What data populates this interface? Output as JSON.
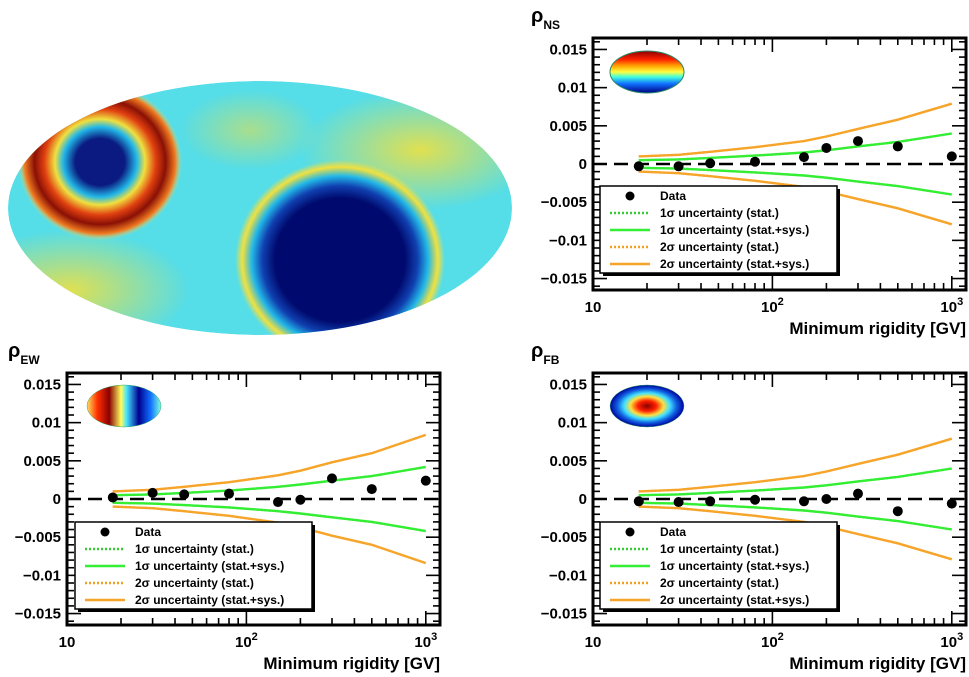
{
  "maps": {
    "main_map": {
      "depicts": "sky-anisotropy-map"
    }
  },
  "chart_data": [
    {
      "id": "ns",
      "type": "scatter",
      "title": "ρ",
      "title_sub": "NS",
      "xlabel": "Minimum rigidity [GV]",
      "xscale": "log",
      "xlim": [
        10,
        1200
      ],
      "ylim": [
        -0.0165,
        0.0165
      ],
      "xticks": [
        {
          "v": 10,
          "base": "10",
          "exp": ""
        },
        {
          "v": 100,
          "base": "10",
          "exp": "2"
        },
        {
          "v": 1000,
          "base": "10",
          "exp": "3"
        }
      ],
      "yticks": [
        {
          "v": 0.015,
          "label": "0.015"
        },
        {
          "v": 0.01,
          "label": "0.01"
        },
        {
          "v": 0.005,
          "label": "0.005"
        },
        {
          "v": 0,
          "label": "0"
        },
        {
          "v": -0.005,
          "label": "−0.005"
        },
        {
          "v": -0.01,
          "label": "−0.01"
        },
        {
          "v": -0.015,
          "label": "−0.015"
        }
      ],
      "inset": "ns",
      "series": [
        {
          "name": "Data",
          "kind": "points",
          "x": [
            18,
            30,
            45,
            80,
            150,
            200,
            300,
            500,
            1000
          ],
          "y": [
            -0.0003,
            -0.0003,
            0.0001,
            0.0003,
            0.0009,
            0.0021,
            0.003,
            0.0023,
            0.001
          ]
        },
        {
          "name": "1σ uncertainty (stat.)",
          "kind": "band",
          "style": "dotted",
          "color": "#33cc33",
          "x": [
            18,
            30,
            45,
            80,
            150,
            200,
            300,
            500,
            1000
          ],
          "y": [
            0.0005,
            0.0006,
            0.0008,
            0.0011,
            0.0015,
            0.0018,
            0.0023,
            0.0029,
            0.004
          ]
        },
        {
          "name": "1σ uncertainty (stat.+sys.)",
          "kind": "band",
          "style": "solid",
          "color": "#33ee33",
          "x": [
            18,
            30,
            45,
            80,
            150,
            200,
            300,
            500,
            1000
          ],
          "y": [
            0.0005,
            0.0006,
            0.0008,
            0.0011,
            0.0015,
            0.0018,
            0.0023,
            0.0029,
            0.004
          ]
        },
        {
          "name": "2σ uncertainty (stat.)",
          "kind": "band",
          "style": "dotted",
          "color": "#f0a020",
          "x": [
            18,
            30,
            45,
            80,
            150,
            200,
            300,
            500,
            1000
          ],
          "y": [
            0.001,
            0.0012,
            0.0016,
            0.0022,
            0.003,
            0.0036,
            0.0046,
            0.0058,
            0.0079
          ]
        },
        {
          "name": "2σ uncertainty (stat.+sys.)",
          "kind": "band",
          "style": "solid",
          "color": "#f7a52a",
          "x": [
            18,
            30,
            45,
            80,
            150,
            200,
            300,
            500,
            1000
          ],
          "y": [
            0.001,
            0.0012,
            0.0016,
            0.0022,
            0.003,
            0.0036,
            0.0046,
            0.0058,
            0.0079
          ]
        }
      ]
    },
    {
      "id": "ew",
      "type": "scatter",
      "title": "ρ",
      "title_sub": "EW",
      "xlabel": "Minimum rigidity [GV]",
      "xscale": "log",
      "xlim": [
        10,
        1200
      ],
      "ylim": [
        -0.0165,
        0.0165
      ],
      "xticks": [
        {
          "v": 10,
          "base": "10",
          "exp": ""
        },
        {
          "v": 100,
          "base": "10",
          "exp": "2"
        },
        {
          "v": 1000,
          "base": "10",
          "exp": "3"
        }
      ],
      "yticks": [
        {
          "v": 0.015,
          "label": "0.015"
        },
        {
          "v": 0.01,
          "label": "0.01"
        },
        {
          "v": 0.005,
          "label": "0.005"
        },
        {
          "v": 0,
          "label": "0"
        },
        {
          "v": -0.005,
          "label": "−0.005"
        },
        {
          "v": -0.01,
          "label": "−0.01"
        },
        {
          "v": -0.015,
          "label": "−0.015"
        }
      ],
      "inset": "ew",
      "series": [
        {
          "name": "Data",
          "kind": "points",
          "x": [
            18,
            30,
            45,
            80,
            150,
            200,
            300,
            500,
            1000
          ],
          "y": [
            0.0002,
            0.0008,
            0.0006,
            0.0007,
            -0.0004,
            -0.0001,
            0.0027,
            0.0013,
            0.0024
          ]
        },
        {
          "name": "1σ uncertainty (stat.)",
          "kind": "band",
          "style": "dotted",
          "color": "#33cc33",
          "x": [
            18,
            30,
            45,
            80,
            150,
            200,
            300,
            500,
            1000
          ],
          "y": [
            0.0005,
            0.0006,
            0.0008,
            0.0011,
            0.0016,
            0.0019,
            0.0024,
            0.003,
            0.0042
          ]
        },
        {
          "name": "1σ uncertainty (stat.+sys.)",
          "kind": "band",
          "style": "solid",
          "color": "#33ee33",
          "x": [
            18,
            30,
            45,
            80,
            150,
            200,
            300,
            500,
            1000
          ],
          "y": [
            0.0005,
            0.0006,
            0.0008,
            0.0011,
            0.0016,
            0.0019,
            0.0024,
            0.003,
            0.0042
          ]
        },
        {
          "name": "2σ uncertainty (stat.)",
          "kind": "band",
          "style": "dotted",
          "color": "#f0a020",
          "x": [
            18,
            30,
            45,
            80,
            150,
            200,
            300,
            500,
            1000
          ],
          "y": [
            0.001,
            0.0012,
            0.0016,
            0.0022,
            0.0031,
            0.0037,
            0.0048,
            0.006,
            0.0084
          ]
        },
        {
          "name": "2σ uncertainty (stat.+sys.)",
          "kind": "band",
          "style": "solid",
          "color": "#f7a52a",
          "x": [
            18,
            30,
            45,
            80,
            150,
            200,
            300,
            500,
            1000
          ],
          "y": [
            0.001,
            0.0012,
            0.0016,
            0.0022,
            0.0031,
            0.0037,
            0.0048,
            0.006,
            0.0084
          ]
        }
      ]
    },
    {
      "id": "fb",
      "type": "scatter",
      "title": "ρ",
      "title_sub": "FB",
      "xlabel": "Minimum rigidity [GV]",
      "xscale": "log",
      "xlim": [
        10,
        1200
      ],
      "ylim": [
        -0.0165,
        0.0165
      ],
      "xticks": [
        {
          "v": 10,
          "base": "10",
          "exp": ""
        },
        {
          "v": 100,
          "base": "10",
          "exp": "2"
        },
        {
          "v": 1000,
          "base": "10",
          "exp": "3"
        }
      ],
      "yticks": [
        {
          "v": 0.015,
          "label": "0.015"
        },
        {
          "v": 0.01,
          "label": "0.01"
        },
        {
          "v": 0.005,
          "label": "0.005"
        },
        {
          "v": 0,
          "label": "0"
        },
        {
          "v": -0.005,
          "label": "−0.005"
        },
        {
          "v": -0.01,
          "label": "−0.01"
        },
        {
          "v": -0.015,
          "label": "−0.015"
        }
      ],
      "inset": "fb",
      "series": [
        {
          "name": "Data",
          "kind": "points",
          "x": [
            18,
            30,
            45,
            80,
            150,
            200,
            300,
            500,
            1000
          ],
          "y": [
            -0.0003,
            -0.0004,
            -0.0003,
            -0.0001,
            -0.0003,
            0.0,
            0.0007,
            -0.0016,
            -0.0006
          ]
        },
        {
          "name": "1σ uncertainty (stat.)",
          "kind": "band",
          "style": "dotted",
          "color": "#33cc33",
          "x": [
            18,
            30,
            45,
            80,
            150,
            200,
            300,
            500,
            1000
          ],
          "y": [
            0.0005,
            0.0006,
            0.0008,
            0.0011,
            0.0015,
            0.0018,
            0.0023,
            0.0029,
            0.004
          ]
        },
        {
          "name": "1σ uncertainty (stat.+sys.)",
          "kind": "band",
          "style": "solid",
          "color": "#33ee33",
          "x": [
            18,
            30,
            45,
            80,
            150,
            200,
            300,
            500,
            1000
          ],
          "y": [
            0.0005,
            0.0006,
            0.0008,
            0.0011,
            0.0015,
            0.0018,
            0.0023,
            0.0029,
            0.004
          ]
        },
        {
          "name": "2σ uncertainty (stat.)",
          "kind": "band",
          "style": "dotted",
          "color": "#f0a020",
          "x": [
            18,
            30,
            45,
            80,
            150,
            200,
            300,
            500,
            1000
          ],
          "y": [
            0.001,
            0.0012,
            0.0016,
            0.0022,
            0.003,
            0.0036,
            0.0046,
            0.0058,
            0.0079
          ]
        },
        {
          "name": "2σ uncertainty (stat.+sys.)",
          "kind": "band",
          "style": "solid",
          "color": "#f7a52a",
          "x": [
            18,
            30,
            45,
            80,
            150,
            200,
            300,
            500,
            1000
          ],
          "y": [
            0.001,
            0.0012,
            0.0016,
            0.0022,
            0.003,
            0.0036,
            0.0046,
            0.0058,
            0.0079
          ]
        }
      ]
    }
  ]
}
